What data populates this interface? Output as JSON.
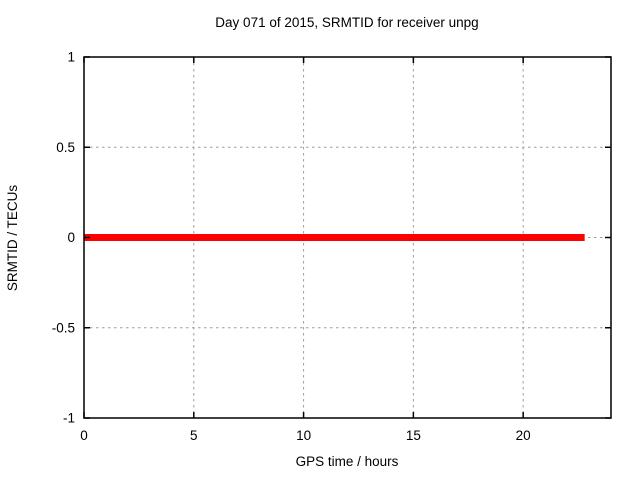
{
  "figure": {
    "background_color": "#ffffff",
    "axis_color": "#000000",
    "accent_color": "#ff0000"
  },
  "chart_data": {
    "type": "line",
    "title": "Day 071 of 2015, SRMTID for receiver unpg",
    "xlabel": "GPS time / hours",
    "ylabel": "SRMTID / TECUs",
    "xlim": [
      0,
      24
    ],
    "ylim": [
      -1,
      1
    ],
    "xticks": [
      0,
      5,
      10,
      15,
      20
    ],
    "yticks": [
      -1,
      -0.5,
      0,
      0.5,
      1
    ],
    "grid": true,
    "grid_color": "#9c9c9c",
    "legend": "none",
    "series": [
      {
        "name": "SRMTID",
        "color": "#ff0000",
        "line_width": 7,
        "x": [
          0,
          22.8
        ],
        "y": [
          0,
          0
        ]
      }
    ]
  }
}
